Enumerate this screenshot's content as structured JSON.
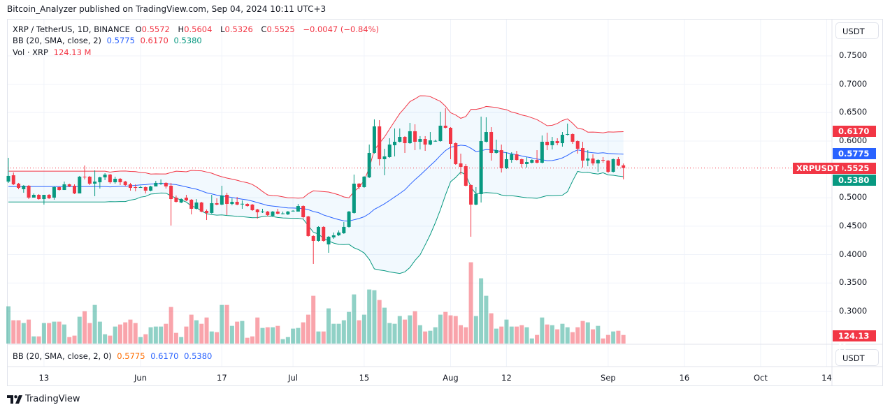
{
  "header": {
    "published": "Bitcoin_Analyzer published on TradingView.com, Sep 04, 2024 10:11 UTC+3"
  },
  "legend": {
    "symbol": "XRP / TetherUS, 1D, BINANCE",
    "o_label": "O",
    "o": "0.5572",
    "h_label": "H",
    "h": "0.5604",
    "l_label": "L",
    "l": "0.5326",
    "c_label": "C",
    "c": "0.5525",
    "change": "−0.0047 (−0.84%)",
    "bb_label": "BB (20, SMA, close, 2)",
    "bb_basis": "0.5775",
    "bb_upper": "0.6170",
    "bb_lower": "0.5380",
    "vol_label": "Vol · XRP",
    "vol": "124.13 M"
  },
  "lower_pane": {
    "bb_label": "BB (20, SMA, close, 2, 0)",
    "bb_basis": "0.5775",
    "bb_upper": "0.6170",
    "bb_lower": "0.5380",
    "currency": "USDT"
  },
  "price_axis": {
    "currency": "USDT",
    "ticks": [
      "0.7500",
      "0.7000",
      "0.6500",
      "0.6000",
      "0.5000",
      "0.4500",
      "0.4000",
      "0.3500",
      "0.3000"
    ],
    "badges": {
      "upper": "0.6170",
      "basis": "0.5775",
      "last": "0.5525",
      "lower": "0.5380",
      "volume": "124.13 M",
      "symbol_tag": "XRPUSDT"
    }
  },
  "time_axis": {
    "ticks": [
      {
        "label": "13",
        "date": "2024-05-13"
      },
      {
        "label": "Jun",
        "date": "2024-06-01"
      },
      {
        "label": "17",
        "date": "2024-06-17"
      },
      {
        "label": "Jul",
        "date": "2024-07-01"
      },
      {
        "label": "15",
        "date": "2024-07-15"
      },
      {
        "label": "Aug",
        "date": "2024-08-01"
      },
      {
        "label": "12",
        "date": "2024-08-12"
      },
      {
        "label": "Sep",
        "date": "2024-09-01"
      },
      {
        "label": "16",
        "date": "2024-09-16"
      },
      {
        "label": "Oct",
        "date": "2024-10-01"
      },
      {
        "label": "14",
        "date": "2024-10-14"
      }
    ]
  },
  "footer": {
    "brand": "TradingView"
  },
  "colors": {
    "up": "#089981",
    "down": "#f23645",
    "bb_basis": "#2962ff",
    "bb_upper": "#f23645",
    "bb_lower": "#089981",
    "bb_fill": "#2196f3",
    "lower_basis": "#ff6d00"
  },
  "chart_data": {
    "type": "candlestick",
    "symbol": "XRP / TetherUS, 1D, BINANCE",
    "ylim": [
      0.25,
      0.78
    ],
    "grid": true,
    "volume_unit": "M",
    "indicator": "BB (20, SMA, close, 2)",
    "fields": [
      "date",
      "open",
      "high",
      "low",
      "close",
      "volume"
    ],
    "candles": [
      [
        "2024-05-06",
        0.5286,
        0.5704,
        0.5262,
        0.5385,
        539
      ],
      [
        "2024-05-07",
        0.5397,
        0.5446,
        0.5225,
        0.5237,
        337
      ],
      [
        "2024-05-08",
        0.5249,
        0.5262,
        0.5151,
        0.5175,
        337
      ],
      [
        "2024-05-09",
        0.5151,
        0.5225,
        0.5089,
        0.5212,
        297
      ],
      [
        "2024-05-10",
        0.5212,
        0.5225,
        0.4978,
        0.5003,
        347
      ],
      [
        "2024-05-11",
        0.5003,
        0.5077,
        0.5003,
        0.5052,
        104
      ],
      [
        "2024-05-12",
        0.5052,
        0.5065,
        0.4966,
        0.4978,
        104
      ],
      [
        "2024-05-13",
        0.4978,
        0.5052,
        0.488,
        0.5052,
        297
      ],
      [
        "2024-05-14",
        0.5052,
        0.5065,
        0.4978,
        0.4991,
        297
      ],
      [
        "2024-05-15",
        0.5003,
        0.52,
        0.4966,
        0.5188,
        317
      ],
      [
        "2024-05-16",
        0.5188,
        0.52,
        0.5126,
        0.5138,
        317
      ],
      [
        "2024-05-17",
        0.5138,
        0.5286,
        0.5138,
        0.5237,
        276
      ],
      [
        "2024-05-18",
        0.5237,
        0.5249,
        0.5188,
        0.52,
        94
      ],
      [
        "2024-05-19",
        0.5212,
        0.5237,
        0.5065,
        0.5077,
        115
      ],
      [
        "2024-05-20",
        0.5077,
        0.5385,
        0.5077,
        0.5372,
        388
      ],
      [
        "2024-05-21",
        0.5372,
        0.5569,
        0.5323,
        0.536,
        468
      ],
      [
        "2024-05-22",
        0.5372,
        0.5385,
        0.5225,
        0.5249,
        297
      ],
      [
        "2024-05-23",
        0.5249,
        0.5483,
        0.5028,
        0.5286,
        559
      ],
      [
        "2024-05-24",
        0.5274,
        0.5372,
        0.5163,
        0.536,
        317
      ],
      [
        "2024-05-25",
        0.536,
        0.5434,
        0.5311,
        0.5409,
        135
      ],
      [
        "2024-05-26",
        0.5409,
        0.5421,
        0.5249,
        0.5274,
        115
      ],
      [
        "2024-05-27",
        0.5274,
        0.5372,
        0.5249,
        0.5335,
        246
      ],
      [
        "2024-05-28",
        0.5335,
        0.5348,
        0.5225,
        0.5274,
        276
      ],
      [
        "2024-05-29",
        0.5286,
        0.5299,
        0.52,
        0.5225,
        307
      ],
      [
        "2024-05-30",
        0.5237,
        0.5262,
        0.5126,
        0.5175,
        347
      ],
      [
        "2024-05-31",
        0.5188,
        0.5237,
        0.5114,
        0.5175,
        297
      ],
      [
        "2024-06-01",
        0.5175,
        0.5212,
        0.5175,
        0.5188,
        94
      ],
      [
        "2024-06-02",
        0.5188,
        0.52,
        0.5077,
        0.5126,
        135
      ],
      [
        "2024-06-03",
        0.5126,
        0.5212,
        0.5114,
        0.52,
        236
      ],
      [
        "2024-06-04",
        0.52,
        0.5299,
        0.52,
        0.5262,
        246
      ],
      [
        "2024-06-05",
        0.5249,
        0.5323,
        0.5225,
        0.5262,
        246
      ],
      [
        "2024-06-06",
        0.5262,
        0.5274,
        0.5163,
        0.52,
        286
      ],
      [
        "2024-06-07",
        0.5212,
        0.5262,
        0.4511,
        0.4978,
        529
      ],
      [
        "2024-06-08",
        0.5003,
        0.504,
        0.4917,
        0.4929,
        155
      ],
      [
        "2024-06-09",
        0.4917,
        0.4991,
        0.4905,
        0.4978,
        94
      ],
      [
        "2024-06-10",
        0.5003,
        0.5052,
        0.4941,
        0.4954,
        246
      ],
      [
        "2024-06-11",
        0.4966,
        0.4978,
        0.4708,
        0.4806,
        418
      ],
      [
        "2024-06-12",
        0.4806,
        0.4978,
        0.4794,
        0.4917,
        337
      ],
      [
        "2024-06-13",
        0.4917,
        0.4929,
        0.4745,
        0.4757,
        286
      ],
      [
        "2024-06-14",
        0.4769,
        0.4794,
        0.4609,
        0.4733,
        377
      ],
      [
        "2024-06-15",
        0.4733,
        0.5052,
        0.472,
        0.4905,
        175
      ],
      [
        "2024-06-16",
        0.4905,
        0.4991,
        0.4868,
        0.488,
        165
      ],
      [
        "2024-06-17",
        0.488,
        0.5212,
        0.4868,
        0.504,
        559
      ],
      [
        "2024-06-18",
        0.5052,
        0.5089,
        0.4696,
        0.4892,
        559
      ],
      [
        "2024-06-19",
        0.4892,
        0.4991,
        0.4868,
        0.4929,
        256
      ],
      [
        "2024-06-20",
        0.4929,
        0.5015,
        0.4868,
        0.488,
        317
      ],
      [
        "2024-06-21",
        0.4892,
        0.4954,
        0.4806,
        0.4895,
        327
      ],
      [
        "2024-06-22",
        0.4892,
        0.4905,
        0.4843,
        0.4855,
        84
      ],
      [
        "2024-06-23",
        0.488,
        0.4892,
        0.4769,
        0.4782,
        104
      ],
      [
        "2024-06-24",
        0.4794,
        0.4806,
        0.4634,
        0.4745,
        377
      ],
      [
        "2024-06-25",
        0.4745,
        0.4806,
        0.4733,
        0.4757,
        226
      ],
      [
        "2024-06-26",
        0.4757,
        0.4769,
        0.4671,
        0.4696,
        236
      ],
      [
        "2024-06-27",
        0.4683,
        0.4769,
        0.4671,
        0.4757,
        236
      ],
      [
        "2024-06-28",
        0.4757,
        0.4806,
        0.4708,
        0.472,
        256
      ],
      [
        "2024-06-29",
        0.472,
        0.4757,
        0.4708,
        0.4725,
        64
      ],
      [
        "2024-06-30",
        0.4708,
        0.4769,
        0.4696,
        0.4757,
        94
      ],
      [
        "2024-07-01",
        0.4769,
        0.4782,
        0.4757,
        0.4772,
        216
      ],
      [
        "2024-07-02",
        0.4757,
        0.4892,
        0.4757,
        0.4855,
        226
      ],
      [
        "2024-07-03",
        0.4855,
        0.4868,
        0.4634,
        0.4659,
        307
      ],
      [
        "2024-07-04",
        0.4671,
        0.4683,
        0.4314,
        0.4327,
        418
      ],
      [
        "2024-07-05",
        0.4327,
        0.4339,
        0.3835,
        0.4241,
        691
      ],
      [
        "2024-07-06",
        0.4241,
        0.4499,
        0.4228,
        0.4487,
        175
      ],
      [
        "2024-07-07",
        0.4487,
        0.4499,
        0.4228,
        0.4241,
        175
      ],
      [
        "2024-07-08",
        0.4179,
        0.4327,
        0.4031,
        0.4314,
        509
      ],
      [
        "2024-07-09",
        0.4302,
        0.4388,
        0.4277,
        0.4339,
        286
      ],
      [
        "2024-07-10",
        0.4339,
        0.4425,
        0.4327,
        0.4388,
        286
      ],
      [
        "2024-07-11",
        0.4376,
        0.4573,
        0.4364,
        0.4487,
        337
      ],
      [
        "2024-07-12",
        0.4487,
        0.4769,
        0.4474,
        0.4757,
        458
      ],
      [
        "2024-07-13",
        0.4733,
        0.5409,
        0.472,
        0.5249,
        711
      ],
      [
        "2024-07-14",
        0.5249,
        0.5262,
        0.5151,
        0.5188,
        337
      ],
      [
        "2024-07-15",
        0.5188,
        0.5385,
        0.5175,
        0.5372,
        418
      ],
      [
        "2024-07-16",
        0.536,
        0.5938,
        0.5348,
        0.579,
        782
      ],
      [
        "2024-07-17",
        0.579,
        0.6381,
        0.5778,
        0.6258,
        772
      ],
      [
        "2024-07-18",
        0.6258,
        0.6368,
        0.5569,
        0.568,
        630
      ],
      [
        "2024-07-19",
        0.568,
        0.5864,
        0.5397,
        0.5729,
        519
      ],
      [
        "2024-07-20",
        0.5717,
        0.6049,
        0.5704,
        0.5938,
        297
      ],
      [
        "2024-07-21",
        0.5926,
        0.6221,
        0.5729,
        0.5987,
        286
      ],
      [
        "2024-07-22",
        0.5987,
        0.6221,
        0.5975,
        0.6073,
        398
      ],
      [
        "2024-07-23",
        0.6073,
        0.6086,
        0.579,
        0.5962,
        347
      ],
      [
        "2024-07-24",
        0.5962,
        0.6319,
        0.595,
        0.6172,
        408
      ],
      [
        "2024-07-25",
        0.6172,
        0.6295,
        0.5839,
        0.5987,
        468
      ],
      [
        "2024-07-26",
        0.5987,
        0.6086,
        0.5852,
        0.6036,
        266
      ],
      [
        "2024-07-27",
        0.6036,
        0.6086,
        0.5827,
        0.5938,
        175
      ],
      [
        "2024-07-28",
        0.5938,
        0.6159,
        0.5926,
        0.6012,
        185
      ],
      [
        "2024-07-29",
        0.5999,
        0.6024,
        0.5987,
        0.6003,
        236
      ],
      [
        "2024-07-30",
        0.5999,
        0.6516,
        0.5987,
        0.627,
        418
      ],
      [
        "2024-07-31",
        0.627,
        0.6578,
        0.6221,
        0.6233,
        458
      ],
      [
        "2024-08-01",
        0.6233,
        0.6245,
        0.568,
        0.595,
        408
      ],
      [
        "2024-08-02",
        0.5962,
        0.5975,
        0.5581,
        0.5594,
        398
      ],
      [
        "2024-08-03",
        0.5606,
        0.5778,
        0.5409,
        0.5544,
        266
      ],
      [
        "2024-08-04",
        0.5557,
        0.5594,
        0.52,
        0.5212,
        236
      ],
      [
        "2024-08-05",
        0.5225,
        0.5237,
        0.4314,
        0.488,
        1176
      ],
      [
        "2024-08-06",
        0.488,
        0.5188,
        0.4868,
        0.5065,
        398
      ],
      [
        "2024-08-07",
        0.5065,
        0.643,
        0.4917,
        0.5999,
        944
      ],
      [
        "2024-08-08",
        0.5987,
        0.6418,
        0.5975,
        0.6159,
        691
      ],
      [
        "2024-08-09",
        0.6159,
        0.6245,
        0.5655,
        0.579,
        438
      ],
      [
        "2024-08-10",
        0.579,
        0.6024,
        0.5778,
        0.5839,
        216
      ],
      [
        "2024-08-11",
        0.5839,
        0.5938,
        0.5446,
        0.552,
        246
      ],
      [
        "2024-08-12",
        0.552,
        0.5803,
        0.5508,
        0.568,
        347
      ],
      [
        "2024-08-13",
        0.5667,
        0.5803,
        0.5618,
        0.5766,
        246
      ],
      [
        "2024-08-14",
        0.5766,
        0.5827,
        0.5655,
        0.5667,
        246
      ],
      [
        "2024-08-15",
        0.568,
        0.5692,
        0.5532,
        0.5594,
        266
      ],
      [
        "2024-08-16",
        0.5594,
        0.5717,
        0.5532,
        0.563,
        236
      ],
      [
        "2024-08-17",
        0.5618,
        0.568,
        0.5606,
        0.5667,
        74
      ],
      [
        "2024-08-18",
        0.5667,
        0.5839,
        0.5606,
        0.5618,
        125
      ],
      [
        "2024-08-19",
        0.5618,
        0.6098,
        0.5606,
        0.5987,
        377
      ],
      [
        "2024-08-20",
        0.5987,
        0.6147,
        0.5839,
        0.5926,
        276
      ],
      [
        "2024-08-21",
        0.5926,
        0.6073,
        0.5852,
        0.5999,
        266
      ],
      [
        "2024-08-22",
        0.5999,
        0.6049,
        0.5926,
        0.5962,
        206
      ],
      [
        "2024-08-23",
        0.5962,
        0.6159,
        0.5901,
        0.611,
        286
      ],
      [
        "2024-08-24",
        0.611,
        0.6307,
        0.6098,
        0.6122,
        236
      ],
      [
        "2024-08-25",
        0.6122,
        0.6135,
        0.595,
        0.5987,
        165
      ],
      [
        "2024-08-26",
        0.5999,
        0.6012,
        0.5778,
        0.5864,
        236
      ],
      [
        "2024-08-27",
        0.5876,
        0.5987,
        0.5532,
        0.5655,
        327
      ],
      [
        "2024-08-28",
        0.5655,
        0.5839,
        0.5557,
        0.5692,
        307
      ],
      [
        "2024-08-29",
        0.5692,
        0.5766,
        0.5569,
        0.5606,
        206
      ],
      [
        "2024-08-30",
        0.5606,
        0.568,
        0.5458,
        0.5667,
        256
      ],
      [
        "2024-08-31",
        0.5667,
        0.5717,
        0.5618,
        0.5655,
        74
      ],
      [
        "2024-09-01",
        0.5655,
        0.5667,
        0.5434,
        0.5458,
        125
      ],
      [
        "2024-09-02",
        0.5458,
        0.5692,
        0.5446,
        0.568,
        175
      ],
      [
        "2024-09-03",
        0.568,
        0.5717,
        0.5557,
        0.5569,
        185
      ],
      [
        "2024-09-04",
        0.5572,
        0.5604,
        0.5326,
        0.5525,
        124.13
      ]
    ]
  }
}
